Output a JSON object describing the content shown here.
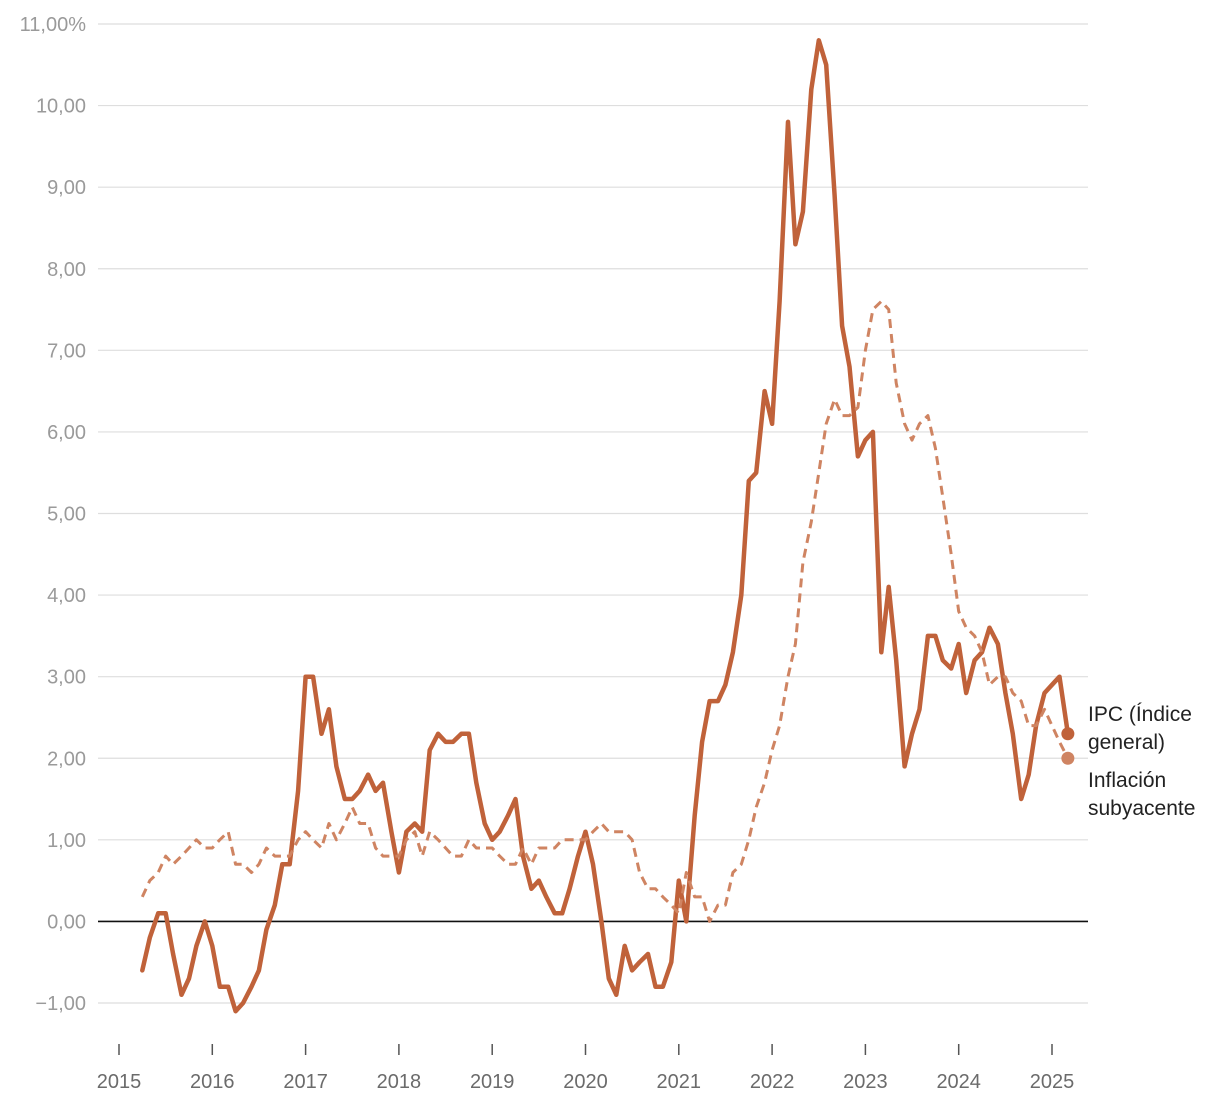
{
  "chart_data": {
    "type": "line",
    "title": "",
    "xlabel": "",
    "ylabel": "",
    "ylim": [
      -1,
      11
    ],
    "xlim": [
      2015.0,
      2025.4
    ],
    "grid": true,
    "legend_placement": "right end of lines",
    "y_ticks": [
      {
        "value": -1,
        "label": "−1,00"
      },
      {
        "value": 0,
        "label": "0,00"
      },
      {
        "value": 1,
        "label": "1,00"
      },
      {
        "value": 2,
        "label": "2,00"
      },
      {
        "value": 3,
        "label": "3,00"
      },
      {
        "value": 4,
        "label": "4,00"
      },
      {
        "value": 5,
        "label": "5,00"
      },
      {
        "value": 6,
        "label": "6,00"
      },
      {
        "value": 7,
        "label": "7,00"
      },
      {
        "value": 8,
        "label": "8,00"
      },
      {
        "value": 9,
        "label": "9,00"
      },
      {
        "value": 10,
        "label": "10,00"
      },
      {
        "value": 11,
        "label": "11,00%"
      }
    ],
    "x_ticks": [
      {
        "value": 2015,
        "label": "2015"
      },
      {
        "value": 2016,
        "label": "2016"
      },
      {
        "value": 2017,
        "label": "2017"
      },
      {
        "value": 2018,
        "label": "2018"
      },
      {
        "value": 2019,
        "label": "2019"
      },
      {
        "value": 2020,
        "label": "2020"
      },
      {
        "value": 2021,
        "label": "2021"
      },
      {
        "value": 2022,
        "label": "2022"
      },
      {
        "value": 2023,
        "label": "2023"
      },
      {
        "value": 2024,
        "label": "2024"
      },
      {
        "value": 2025,
        "label": "2025"
      }
    ],
    "series": [
      {
        "name": "IPC (Índice general)",
        "color": "#c0623a",
        "style": "solid",
        "points": [
          [
            2015.25,
            -0.6
          ],
          [
            2015.33,
            -0.2
          ],
          [
            2015.42,
            0.1
          ],
          [
            2015.5,
            0.1
          ],
          [
            2015.58,
            -0.4
          ],
          [
            2015.67,
            -0.9
          ],
          [
            2015.75,
            -0.7
          ],
          [
            2015.83,
            -0.3
          ],
          [
            2015.92,
            0.0
          ],
          [
            2016.0,
            -0.3
          ],
          [
            2016.08,
            -0.8
          ],
          [
            2016.17,
            -0.8
          ],
          [
            2016.25,
            -1.1
          ],
          [
            2016.33,
            -1.0
          ],
          [
            2016.42,
            -0.8
          ],
          [
            2016.5,
            -0.6
          ],
          [
            2016.58,
            -0.1
          ],
          [
            2016.67,
            0.2
          ],
          [
            2016.75,
            0.7
          ],
          [
            2016.83,
            0.7
          ],
          [
            2016.92,
            1.6
          ],
          [
            2017.0,
            3.0
          ],
          [
            2017.08,
            3.0
          ],
          [
            2017.17,
            2.3
          ],
          [
            2017.25,
            2.6
          ],
          [
            2017.33,
            1.9
          ],
          [
            2017.42,
            1.5
          ],
          [
            2017.5,
            1.5
          ],
          [
            2017.58,
            1.6
          ],
          [
            2017.67,
            1.8
          ],
          [
            2017.75,
            1.6
          ],
          [
            2017.83,
            1.7
          ],
          [
            2017.92,
            1.1
          ],
          [
            2018.0,
            0.6
          ],
          [
            2018.08,
            1.1
          ],
          [
            2018.17,
            1.2
          ],
          [
            2018.25,
            1.1
          ],
          [
            2018.33,
            2.1
          ],
          [
            2018.42,
            2.3
          ],
          [
            2018.5,
            2.2
          ],
          [
            2018.58,
            2.2
          ],
          [
            2018.67,
            2.3
          ],
          [
            2018.75,
            2.3
          ],
          [
            2018.83,
            1.7
          ],
          [
            2018.92,
            1.2
          ],
          [
            2019.0,
            1.0
          ],
          [
            2019.08,
            1.1
          ],
          [
            2019.17,
            1.3
          ],
          [
            2019.25,
            1.5
          ],
          [
            2019.33,
            0.8
          ],
          [
            2019.42,
            0.4
          ],
          [
            2019.5,
            0.5
          ],
          [
            2019.58,
            0.3
          ],
          [
            2019.67,
            0.1
          ],
          [
            2019.75,
            0.1
          ],
          [
            2019.83,
            0.4
          ],
          [
            2019.92,
            0.8
          ],
          [
            2020.0,
            1.1
          ],
          [
            2020.08,
            0.7
          ],
          [
            2020.17,
            0.0
          ],
          [
            2020.25,
            -0.7
          ],
          [
            2020.33,
            -0.9
          ],
          [
            2020.42,
            -0.3
          ],
          [
            2020.5,
            -0.6
          ],
          [
            2020.58,
            -0.5
          ],
          [
            2020.67,
            -0.4
          ],
          [
            2020.75,
            -0.8
          ],
          [
            2020.83,
            -0.8
          ],
          [
            2020.92,
            -0.5
          ],
          [
            2021.0,
            0.5
          ],
          [
            2021.08,
            0.0
          ],
          [
            2021.17,
            1.3
          ],
          [
            2021.25,
            2.2
          ],
          [
            2021.33,
            2.7
          ],
          [
            2021.42,
            2.7
          ],
          [
            2021.5,
            2.9
          ],
          [
            2021.58,
            3.3
          ],
          [
            2021.67,
            4.0
          ],
          [
            2021.75,
            5.4
          ],
          [
            2021.83,
            5.5
          ],
          [
            2021.92,
            6.5
          ],
          [
            2022.0,
            6.1
          ],
          [
            2022.08,
            7.6
          ],
          [
            2022.17,
            9.8
          ],
          [
            2022.25,
            8.3
          ],
          [
            2022.33,
            8.7
          ],
          [
            2022.42,
            10.2
          ],
          [
            2022.5,
            10.8
          ],
          [
            2022.58,
            10.5
          ],
          [
            2022.67,
            8.9
          ],
          [
            2022.75,
            7.3
          ],
          [
            2022.83,
            6.8
          ],
          [
            2022.92,
            5.7
          ],
          [
            2023.0,
            5.9
          ],
          [
            2023.08,
            6.0
          ],
          [
            2023.17,
            3.3
          ],
          [
            2023.25,
            4.1
          ],
          [
            2023.33,
            3.2
          ],
          [
            2023.42,
            1.9
          ],
          [
            2023.5,
            2.3
          ],
          [
            2023.58,
            2.6
          ],
          [
            2023.67,
            3.5
          ],
          [
            2023.75,
            3.5
          ],
          [
            2023.83,
            3.2
          ],
          [
            2023.92,
            3.1
          ],
          [
            2024.0,
            3.4
          ],
          [
            2024.08,
            2.8
          ],
          [
            2024.17,
            3.2
          ],
          [
            2024.25,
            3.3
          ],
          [
            2024.33,
            3.6
          ],
          [
            2024.42,
            3.4
          ],
          [
            2024.5,
            2.8
          ],
          [
            2024.58,
            2.3
          ],
          [
            2024.67,
            1.5
          ],
          [
            2024.75,
            1.8
          ],
          [
            2024.83,
            2.4
          ],
          [
            2024.92,
            2.8
          ],
          [
            2025.0,
            2.9
          ],
          [
            2025.08,
            3.0
          ],
          [
            2025.17,
            2.3
          ]
        ]
      },
      {
        "name": "Inflación subyacente",
        "color": "#cf8462",
        "style": "dashed",
        "points": [
          [
            2015.25,
            0.3
          ],
          [
            2015.33,
            0.5
          ],
          [
            2015.42,
            0.6
          ],
          [
            2015.5,
            0.8
          ],
          [
            2015.58,
            0.7
          ],
          [
            2015.67,
            0.8
          ],
          [
            2015.75,
            0.9
          ],
          [
            2015.83,
            1.0
          ],
          [
            2015.92,
            0.9
          ],
          [
            2016.0,
            0.9
          ],
          [
            2016.08,
            1.0
          ],
          [
            2016.17,
            1.1
          ],
          [
            2016.25,
            0.7
          ],
          [
            2016.33,
            0.7
          ],
          [
            2016.42,
            0.6
          ],
          [
            2016.5,
            0.7
          ],
          [
            2016.58,
            0.9
          ],
          [
            2016.67,
            0.8
          ],
          [
            2016.75,
            0.8
          ],
          [
            2016.83,
            0.8
          ],
          [
            2016.92,
            1.0
          ],
          [
            2017.0,
            1.1
          ],
          [
            2017.08,
            1.0
          ],
          [
            2017.17,
            0.9
          ],
          [
            2017.25,
            1.2
          ],
          [
            2017.33,
            1.0
          ],
          [
            2017.42,
            1.2
          ],
          [
            2017.5,
            1.4
          ],
          [
            2017.58,
            1.2
          ],
          [
            2017.67,
            1.2
          ],
          [
            2017.75,
            0.9
          ],
          [
            2017.83,
            0.8
          ],
          [
            2017.92,
            0.8
          ],
          [
            2018.0,
            0.8
          ],
          [
            2018.08,
            1.0
          ],
          [
            2018.17,
            1.1
          ],
          [
            2018.25,
            0.8
          ],
          [
            2018.33,
            1.1
          ],
          [
            2018.42,
            1.0
          ],
          [
            2018.5,
            0.9
          ],
          [
            2018.58,
            0.8
          ],
          [
            2018.67,
            0.8
          ],
          [
            2018.75,
            1.0
          ],
          [
            2018.83,
            0.9
          ],
          [
            2018.92,
            0.9
          ],
          [
            2019.0,
            0.9
          ],
          [
            2019.08,
            0.8
          ],
          [
            2019.17,
            0.7
          ],
          [
            2019.25,
            0.7
          ],
          [
            2019.33,
            0.9
          ],
          [
            2019.42,
            0.7
          ],
          [
            2019.5,
            0.9
          ],
          [
            2019.58,
            0.9
          ],
          [
            2019.67,
            0.9
          ],
          [
            2019.75,
            1.0
          ],
          [
            2019.83,
            1.0
          ],
          [
            2019.92,
            1.0
          ],
          [
            2020.0,
            1.0
          ],
          [
            2020.08,
            1.1
          ],
          [
            2020.17,
            1.2
          ],
          [
            2020.25,
            1.1
          ],
          [
            2020.33,
            1.1
          ],
          [
            2020.42,
            1.1
          ],
          [
            2020.5,
            1.0
          ],
          [
            2020.58,
            0.6
          ],
          [
            2020.67,
            0.4
          ],
          [
            2020.75,
            0.4
          ],
          [
            2020.83,
            0.3
          ],
          [
            2020.92,
            0.2
          ],
          [
            2021.0,
            0.1
          ],
          [
            2021.08,
            0.6
          ],
          [
            2021.17,
            0.3
          ],
          [
            2021.25,
            0.3
          ],
          [
            2021.33,
            0.0
          ],
          [
            2021.42,
            0.2
          ],
          [
            2021.5,
            0.2
          ],
          [
            2021.58,
            0.6
          ],
          [
            2021.67,
            0.7
          ],
          [
            2021.75,
            1.0
          ],
          [
            2021.83,
            1.4
          ],
          [
            2021.92,
            1.7
          ],
          [
            2022.0,
            2.1
          ],
          [
            2022.08,
            2.4
          ],
          [
            2022.17,
            3.0
          ],
          [
            2022.25,
            3.4
          ],
          [
            2022.33,
            4.4
          ],
          [
            2022.42,
            4.9
          ],
          [
            2022.5,
            5.5
          ],
          [
            2022.58,
            6.1
          ],
          [
            2022.67,
            6.4
          ],
          [
            2022.75,
            6.2
          ],
          [
            2022.83,
            6.2
          ],
          [
            2022.92,
            6.3
          ],
          [
            2023.0,
            7.0
          ],
          [
            2023.08,
            7.5
          ],
          [
            2023.17,
            7.6
          ],
          [
            2023.25,
            7.5
          ],
          [
            2023.33,
            6.6
          ],
          [
            2023.42,
            6.1
          ],
          [
            2023.5,
            5.9
          ],
          [
            2023.58,
            6.1
          ],
          [
            2023.67,
            6.2
          ],
          [
            2023.75,
            5.8
          ],
          [
            2023.83,
            5.2
          ],
          [
            2023.92,
            4.5
          ],
          [
            2024.0,
            3.8
          ],
          [
            2024.08,
            3.6
          ],
          [
            2024.17,
            3.5
          ],
          [
            2024.25,
            3.3
          ],
          [
            2024.33,
            2.9
          ],
          [
            2024.42,
            3.0
          ],
          [
            2024.5,
            3.0
          ],
          [
            2024.58,
            2.8
          ],
          [
            2024.67,
            2.7
          ],
          [
            2024.75,
            2.4
          ],
          [
            2024.83,
            2.4
          ],
          [
            2024.92,
            2.6
          ],
          [
            2025.0,
            2.4
          ],
          [
            2025.08,
            2.2
          ],
          [
            2025.17,
            2.0
          ]
        ]
      }
    ],
    "labels": [
      {
        "series": 0,
        "lines": [
          "IPC (Índice",
          "general)"
        ]
      },
      {
        "series": 1,
        "lines": [
          "Inflación",
          "subyacente"
        ]
      }
    ]
  }
}
